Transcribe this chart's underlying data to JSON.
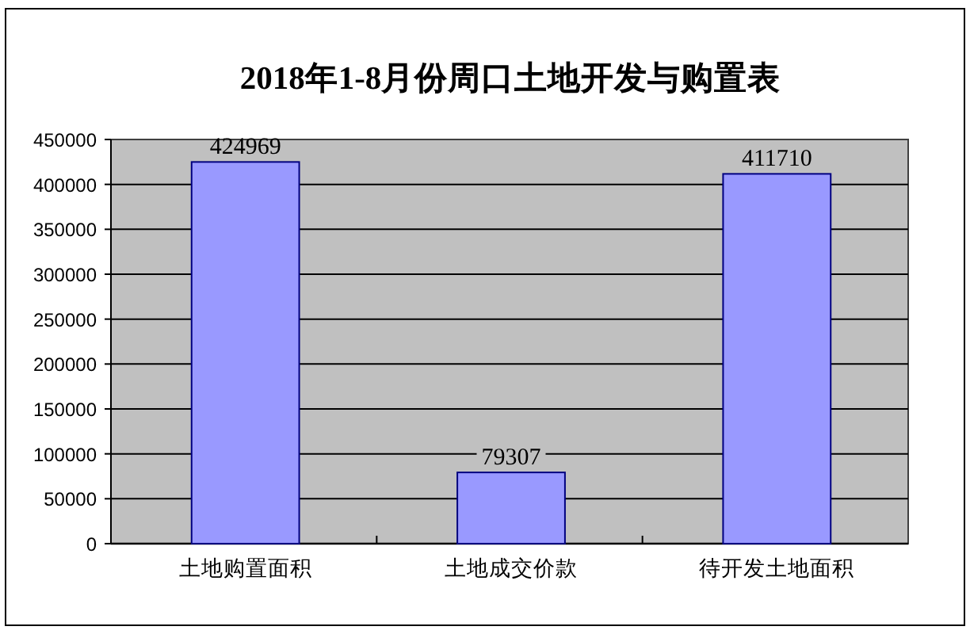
{
  "chart_data": {
    "type": "bar",
    "title": "2018年1-8月份周口土地开发与购置表",
    "categories": [
      "土地购置面积",
      "土地成交价款",
      "待开发土地面积"
    ],
    "values": [
      424969,
      79307,
      411710
    ],
    "color": "#9999ff",
    "ylim": [
      0,
      450000
    ],
    "yticks": [
      0,
      50000,
      100000,
      150000,
      200000,
      250000,
      300000,
      350000,
      400000,
      450000
    ],
    "grid": "y",
    "data_labels": true
  }
}
